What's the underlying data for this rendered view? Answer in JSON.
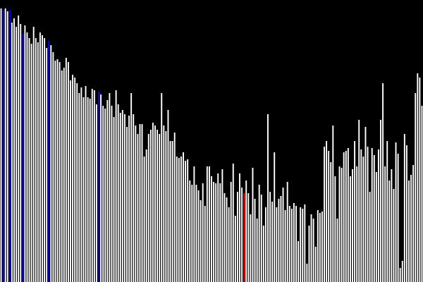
{
  "visualization": {
    "kind": "sorting-algorithm-bar-visualization",
    "background_color": "#000000",
    "default_bar_color": "#FFFFFF",
    "highlight_color_primary": "#0000FF",
    "highlight_color_secondary": "#FF0000",
    "max_value": 400,
    "bar_values": [
      388,
      386,
      388,
      384,
      386,
      368,
      374,
      362,
      378,
      366,
      352,
      364,
      354,
      346,
      338,
      362,
      346,
      340,
      354,
      350,
      346,
      332,
      342,
      336,
      326,
      314,
      316,
      312,
      300,
      304,
      318,
      312,
      286,
      294,
      290,
      282,
      268,
      276,
      262,
      278,
      262,
      260,
      274,
      272,
      252,
      270,
      266,
      250,
      246,
      258,
      268,
      250,
      234,
      272,
      252,
      240,
      244,
      238,
      220,
      236,
      268,
      238,
      222,
      210,
      224,
      224,
      178,
      188,
      210,
      216,
      226,
      222,
      216,
      210,
      268,
      222,
      214,
      244,
      200,
      200,
      212,
      178,
      176,
      178,
      184,
      172,
      174,
      144,
      138,
      164,
      138,
      130,
      116,
      140,
      108,
      164,
      164,
      150,
      142,
      140,
      154,
      140,
      160,
      126,
      120,
      106,
      142,
      168,
      94,
      128,
      154,
      134,
      126,
      144,
      126,
      96,
      162,
      118,
      90,
      138,
      124,
      80,
      106,
      238,
      128,
      114,
      184,
      106,
      118,
      122,
      134,
      102,
      142,
      108,
      104,
      112,
      108,
      58,
      106,
      104,
      110,
      26,
      80,
      96,
      90,
      50,
      102,
      98,
      100,
      192,
      200,
      186,
      170,
      222,
      150,
      90,
      164,
      162,
      184,
      186,
      190,
      150,
      160,
      200,
      164,
      230,
      188,
      178,
      220,
      192,
      128,
      190,
      180,
      156,
      188,
      230,
      282,
      164,
      200,
      144,
      160,
      132,
      198,
      182,
      20,
      30,
      210,
      194,
      144,
      152,
      166,
      268,
      296,
      290,
      250
    ],
    "highlighted_primary_indices": [
      1,
      4,
      10,
      22,
      45
    ],
    "highlighted_secondary_indices": [
      112
    ]
  }
}
